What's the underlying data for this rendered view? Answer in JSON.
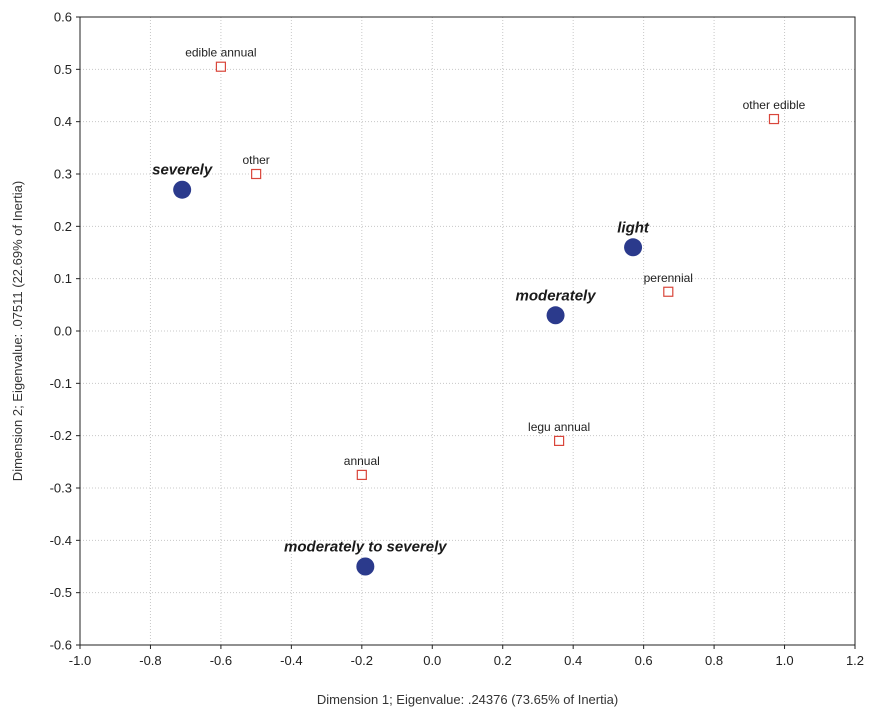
{
  "chart_data": {
    "type": "scatter",
    "xlabel": "Dimension 1; Eigenvalue: .24376 (73.65% of Inertia)",
    "ylabel": "Dimension 2; Eigenvalue: .07511 (22.69% of Inertia)",
    "xlim": [
      -1.0,
      1.2
    ],
    "ylim": [
      -0.6,
      0.6
    ],
    "x_ticks": [
      "-1.0",
      "-0.8",
      "-0.6",
      "-0.4",
      "-0.2",
      "0.0",
      "0.2",
      "0.4",
      "0.6",
      "0.8",
      "1.0",
      "1.2"
    ],
    "y_ticks": [
      "0.6",
      "0.5",
      "0.4",
      "0.3",
      "0.2",
      "0.1",
      "0.0",
      "-0.1",
      "-0.2",
      "-0.3",
      "-0.4",
      "-0.5",
      "-0.6"
    ],
    "grid": true,
    "series": [
      {
        "marker": "circle",
        "color": "#2b3a8c",
        "points": [
          {
            "label": "severely",
            "x": -0.71,
            "y": 0.27
          },
          {
            "label": "light",
            "x": 0.57,
            "y": 0.16
          },
          {
            "label": "moderately",
            "x": 0.35,
            "y": 0.03
          },
          {
            "label": "moderately to severely",
            "x": -0.19,
            "y": -0.45
          }
        ]
      },
      {
        "marker": "square",
        "color": "#d9463b",
        "points": [
          {
            "label": "edible annual",
            "x": -0.6,
            "y": 0.505
          },
          {
            "label": "other",
            "x": -0.5,
            "y": 0.3
          },
          {
            "label": "other edible",
            "x": 0.97,
            "y": 0.405
          },
          {
            "label": "perennial",
            "x": 0.67,
            "y": 0.075
          },
          {
            "label": "legu annual",
            "x": 0.36,
            "y": -0.21
          },
          {
            "label": "annual",
            "x": -0.2,
            "y": -0.275
          }
        ]
      }
    ]
  }
}
